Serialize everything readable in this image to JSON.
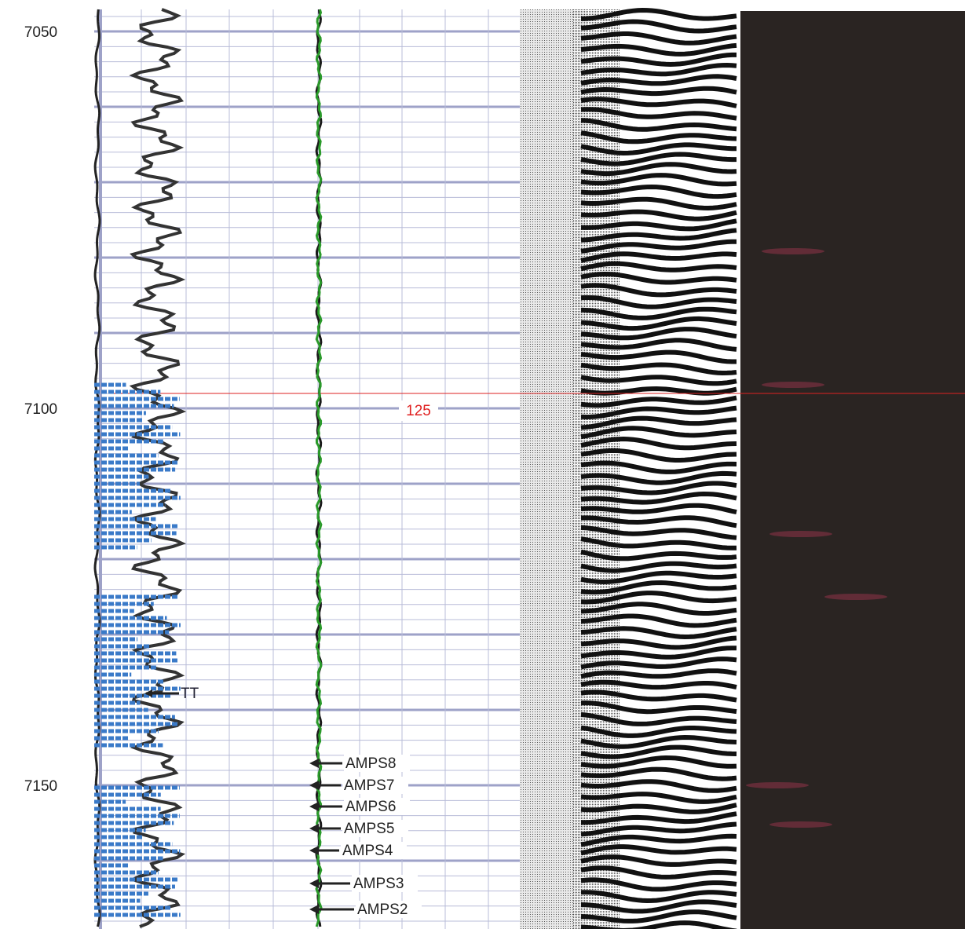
{
  "depth_labels": [
    7050,
    7100,
    7150
  ],
  "marker_value": 125,
  "curve_label": "TT",
  "sample_labels": [
    "AMPS8",
    "AMPS7",
    "AMPS6",
    "AMPS5",
    "AMPS4",
    "AMPS3",
    "AMPS2"
  ]
}
